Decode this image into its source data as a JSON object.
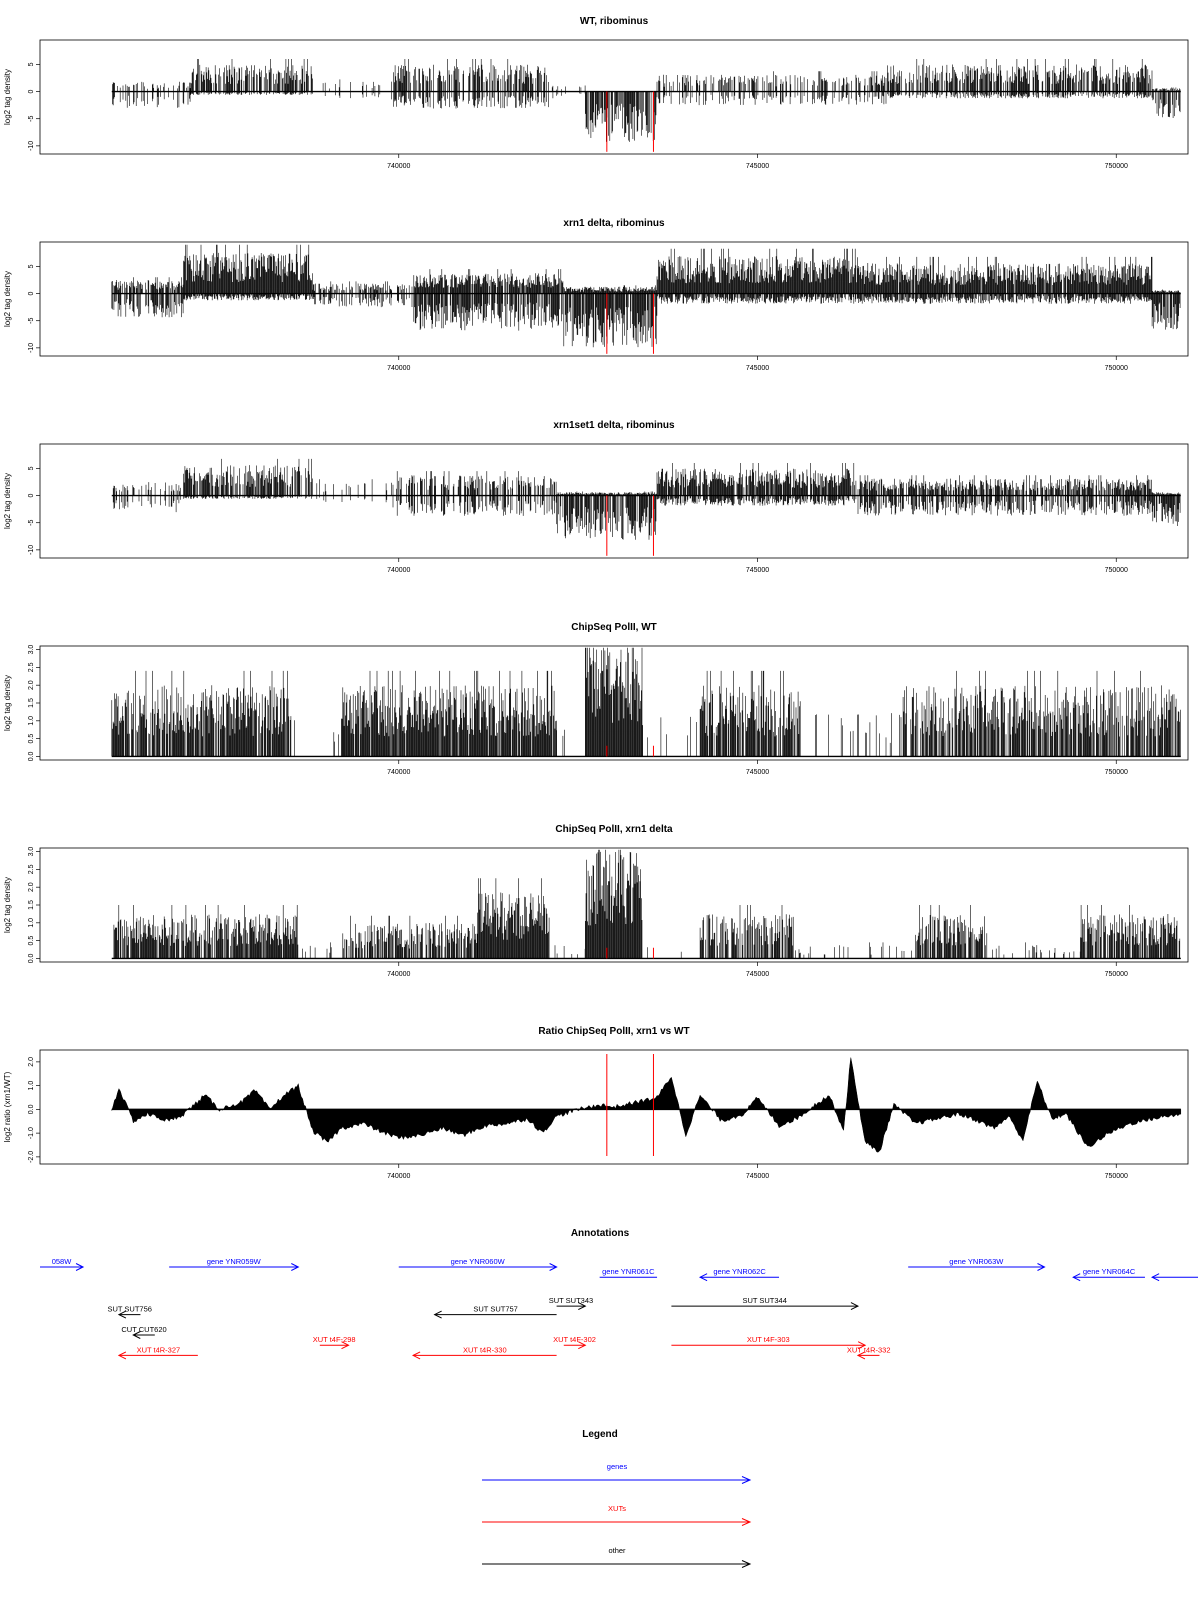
{
  "chart_data": [
    {
      "type": "bar",
      "title": "WT, ribominus",
      "ylabel": "log2 tag density",
      "yticks": [
        5,
        0,
        -5,
        -10
      ],
      "ylim": [
        -11.5,
        9.5
      ],
      "xticks": [
        740000,
        745000,
        750000
      ],
      "xlim": [
        735000,
        751000
      ],
      "markers_x": [
        742900,
        743550
      ],
      "profile": {
        "segments": [
          {
            "from": 736000,
            "to": 737100,
            "pos": 1.5,
            "neg": -2.5,
            "density": 0.35
          },
          {
            "from": 737100,
            "to": 738800,
            "pos": 4.0,
            "neg": -0.5,
            "density": 0.75
          },
          {
            "from": 738800,
            "to": 739900,
            "pos": 1.5,
            "neg": -1.0,
            "density": 0.15
          },
          {
            "from": 739900,
            "to": 742100,
            "pos": 4.0,
            "neg": -2.5,
            "density": 0.65
          },
          {
            "from": 742100,
            "to": 742600,
            "pos": 1.0,
            "neg": -1.0,
            "density": 0.15
          },
          {
            "from": 742600,
            "to": 743600,
            "pos": 0.0,
            "neg": -7.5,
            "density": 1.0
          },
          {
            "from": 743600,
            "to": 746800,
            "pos": 2.5,
            "neg": -2.0,
            "density": 0.45
          },
          {
            "from": 746800,
            "to": 750500,
            "pos": 4.0,
            "neg": -1.0,
            "density": 0.7
          },
          {
            "from": 750500,
            "to": 750900,
            "pos": 0.5,
            "neg": -4.0,
            "density": 0.8
          }
        ]
      }
    },
    {
      "type": "bar",
      "title": "xrn1 delta, ribominus",
      "ylabel": "log2 tag density",
      "yticks": [
        5,
        0,
        -5,
        -10
      ],
      "ylim": [
        -11.5,
        9.5
      ],
      "xticks": [
        740000,
        745000,
        750000
      ],
      "xlim": [
        735000,
        751000
      ],
      "markers_x": [
        742900,
        743550
      ],
      "profile": {
        "segments": [
          {
            "from": 736000,
            "to": 737000,
            "pos": 2.0,
            "neg": -3.5,
            "density": 0.75
          },
          {
            "from": 737000,
            "to": 738800,
            "pos": 6.0,
            "neg": -1.0,
            "density": 1.0
          },
          {
            "from": 738800,
            "to": 740200,
            "pos": 1.5,
            "neg": -2.0,
            "density": 0.6
          },
          {
            "from": 740200,
            "to": 742300,
            "pos": 3.0,
            "neg": -5.5,
            "density": 0.95
          },
          {
            "from": 742300,
            "to": 743600,
            "pos": 1.0,
            "neg": -8.0,
            "density": 1.0
          },
          {
            "from": 743600,
            "to": 746400,
            "pos": 5.5,
            "neg": -1.5,
            "density": 1.0
          },
          {
            "from": 746400,
            "to": 750500,
            "pos": 4.5,
            "neg": -1.5,
            "density": 0.95
          },
          {
            "from": 750500,
            "to": 750900,
            "pos": 0.5,
            "neg": -5.5,
            "density": 1.0
          }
        ]
      }
    },
    {
      "type": "bar",
      "title": "xrn1set1 delta, ribominus",
      "ylabel": "log2 tag density",
      "yticks": [
        5,
        0,
        -5,
        -10
      ],
      "ylim": [
        -11.5,
        9.5
      ],
      "xticks": [
        740000,
        745000,
        750000
      ],
      "xlim": [
        735000,
        751000
      ],
      "markers_x": [
        742900,
        743550
      ],
      "profile": {
        "segments": [
          {
            "from": 736000,
            "to": 737000,
            "pos": 2.0,
            "neg": -2.5,
            "density": 0.4
          },
          {
            "from": 737000,
            "to": 738800,
            "pos": 4.5,
            "neg": -0.5,
            "density": 0.8
          },
          {
            "from": 738800,
            "to": 739900,
            "pos": 2.0,
            "neg": -1.0,
            "density": 0.2
          },
          {
            "from": 739900,
            "to": 742200,
            "pos": 3.0,
            "neg": -3.0,
            "density": 0.55
          },
          {
            "from": 742200,
            "to": 743600,
            "pos": 0.5,
            "neg": -6.5,
            "density": 1.0
          },
          {
            "from": 743600,
            "to": 746400,
            "pos": 4.0,
            "neg": -1.5,
            "density": 0.85
          },
          {
            "from": 746400,
            "to": 750500,
            "pos": 2.5,
            "neg": -3.0,
            "density": 0.75
          },
          {
            "from": 750500,
            "to": 750900,
            "pos": 0.5,
            "neg": -4.5,
            "density": 1.0
          }
        ]
      }
    },
    {
      "type": "bar",
      "title": "ChipSeq PolII, WT",
      "ylabel": "log2 tag density",
      "yticks": [
        0.0,
        0.5,
        1.0,
        1.5,
        2.0,
        2.5,
        3.0
      ],
      "ylim": [
        -0.1,
        3.1
      ],
      "xticks": [
        740000,
        745000,
        750000
      ],
      "xlim": [
        735000,
        751000
      ],
      "markers_x": [
        742900,
        743550
      ],
      "profile": {
        "segments": [
          {
            "from": 736000,
            "to": 738500,
            "pos": 1.6,
            "neg": 0,
            "density": 0.85
          },
          {
            "from": 738500,
            "to": 739200,
            "pos": 1.0,
            "neg": 0,
            "density": 0.1
          },
          {
            "from": 739200,
            "to": 742200,
            "pos": 1.6,
            "neg": 0,
            "density": 0.95
          },
          {
            "from": 742200,
            "to": 742600,
            "pos": 1.0,
            "neg": 0,
            "density": 0.1
          },
          {
            "from": 742600,
            "to": 743400,
            "pos": 2.6,
            "neg": 0,
            "density": 1.0
          },
          {
            "from": 743400,
            "to": 744200,
            "pos": 1.0,
            "neg": 0,
            "density": 0.08
          },
          {
            "from": 744200,
            "to": 745600,
            "pos": 1.6,
            "neg": 0,
            "density": 0.85
          },
          {
            "from": 745600,
            "to": 747000,
            "pos": 1.0,
            "neg": 0,
            "density": 0.08
          },
          {
            "from": 747000,
            "to": 750900,
            "pos": 1.6,
            "neg": 0,
            "density": 0.75
          }
        ]
      }
    },
    {
      "type": "bar",
      "title": "ChipSeq PolII, xrn1 delta",
      "ylabel": "log2 tag density",
      "yticks": [
        0.0,
        0.5,
        1.0,
        1.5,
        2.0,
        2.5,
        3.0
      ],
      "ylim": [
        -0.1,
        3.1
      ],
      "xticks": [
        740000,
        745000,
        750000
      ],
      "xlim": [
        735000,
        751000
      ],
      "markers_x": [
        742900,
        743550
      ],
      "profile": {
        "segments": [
          {
            "from": 736000,
            "to": 738600,
            "pos": 1.0,
            "neg": 0,
            "density": 0.85
          },
          {
            "from": 738600,
            "to": 739200,
            "pos": 0.3,
            "neg": 0,
            "density": 0.1
          },
          {
            "from": 739200,
            "to": 741100,
            "pos": 0.8,
            "neg": 0,
            "density": 0.7
          },
          {
            "from": 741100,
            "to": 742100,
            "pos": 1.5,
            "neg": 0,
            "density": 1.0
          },
          {
            "from": 742100,
            "to": 742600,
            "pos": 0.3,
            "neg": 0,
            "density": 0.05
          },
          {
            "from": 742600,
            "to": 743400,
            "pos": 2.4,
            "neg": 0,
            "density": 1.0
          },
          {
            "from": 743400,
            "to": 744200,
            "pos": 0.3,
            "neg": 0,
            "density": 0.05
          },
          {
            "from": 744200,
            "to": 745500,
            "pos": 1.0,
            "neg": 0,
            "density": 0.75
          },
          {
            "from": 745500,
            "to": 747200,
            "pos": 0.3,
            "neg": 0,
            "density": 0.1
          },
          {
            "from": 747200,
            "to": 748200,
            "pos": 1.0,
            "neg": 0,
            "density": 0.8
          },
          {
            "from": 748200,
            "to": 749500,
            "pos": 0.3,
            "neg": 0,
            "density": 0.15
          },
          {
            "from": 749500,
            "to": 750900,
            "pos": 1.0,
            "neg": 0,
            "density": 0.8
          }
        ]
      }
    },
    {
      "type": "area",
      "title": "Ratio ChipSeq PolII, xrn1 vs WT",
      "ylabel": "log2 ratio (xrn1/WT)",
      "yticks": [
        -2,
        -1,
        0,
        1,
        2
      ],
      "ylim": [
        -2.3,
        2.5
      ],
      "xticks": [
        740000,
        745000,
        750000
      ],
      "xlim": [
        735000,
        751000
      ],
      "markers_x": [
        742900,
        743550
      ],
      "x": [
        736000,
        736100,
        736300,
        736500,
        736800,
        737000,
        737300,
        737500,
        737800,
        738000,
        738200,
        738400,
        738600,
        738800,
        739000,
        739200,
        739500,
        739800,
        740000,
        740300,
        740600,
        740900,
        741200,
        741500,
        741800,
        742000,
        742200,
        742500,
        742800,
        743000,
        743300,
        743600,
        743800,
        744000,
        744200,
        744500,
        744800,
        745000,
        745300,
        745600,
        745800,
        746000,
        746200,
        746300,
        746500,
        746700,
        746900,
        747200,
        747500,
        747800,
        748000,
        748300,
        748500,
        748700,
        748900,
        749100,
        749300,
        749600,
        749900,
        750200,
        750500,
        750900
      ],
      "y": [
        0.0,
        0.9,
        -0.5,
        -0.2,
        -0.5,
        -0.2,
        0.6,
        0.0,
        0.3,
        0.8,
        0.0,
        0.6,
        1.0,
        -0.9,
        -1.4,
        -0.8,
        -0.6,
        -1.0,
        -1.2,
        -1.1,
        -0.8,
        -1.1,
        -0.7,
        -0.6,
        -0.4,
        -1.0,
        -0.3,
        0.0,
        0.2,
        0.1,
        0.3,
        0.5,
        1.4,
        -1.1,
        0.6,
        -0.5,
        -0.2,
        0.5,
        -0.7,
        -0.3,
        0.2,
        0.6,
        -0.9,
        2.2,
        -1.4,
        -1.8,
        0.2,
        -0.6,
        -0.4,
        -0.2,
        -0.4,
        -0.8,
        -0.3,
        -1.3,
        1.2,
        -0.4,
        -0.2,
        -1.6,
        -1.0,
        -0.6,
        -0.4,
        -0.2
      ]
    }
  ],
  "annotations": {
    "title": "Annotations",
    "xlim": [
      735000,
      751000
    ],
    "features": [
      {
        "label": "058W",
        "x1": 735000,
        "x2": 735600,
        "row": 1,
        "color": "#0000ff",
        "dir": "right"
      },
      {
        "label": "gene YNR059W",
        "x1": 736800,
        "x2": 738600,
        "row": 1,
        "color": "#0000ff",
        "dir": "right"
      },
      {
        "label": "gene YNR060W",
        "x1": 740000,
        "x2": 742200,
        "row": 1,
        "color": "#0000ff",
        "dir": "right"
      },
      {
        "label": "gene YNR061C",
        "x1": 742800,
        "x2": 743600,
        "row": 1.6,
        "color": "#0000ff",
        "dir": "none"
      },
      {
        "label": "gene YNR062C",
        "x1": 744200,
        "x2": 745300,
        "row": 1.6,
        "color": "#0000ff",
        "dir": "left"
      },
      {
        "label": "gene YNR063W",
        "x1": 747100,
        "x2": 749000,
        "row": 1,
        "color": "#0000ff",
        "dir": "right"
      },
      {
        "label": "gene YNR064C",
        "x1": 749400,
        "x2": 750400,
        "row": 1.6,
        "color": "#0000ff",
        "dir": "left"
      },
      {
        "label": "",
        "x1": 750500,
        "x2": 751800,
        "row": 1.6,
        "color": "#0000ff",
        "dir": "left"
      },
      {
        "label": "SUT SUT756",
        "x1": 736100,
        "x2": 736400,
        "row": 3.8,
        "color": "#000000",
        "dir": "left"
      },
      {
        "label": "SUT SUT757",
        "x1": 740500,
        "x2": 742200,
        "row": 3.8,
        "color": "#000000",
        "dir": "left"
      },
      {
        "label": "SUT SUT343",
        "x1": 742200,
        "x2": 742600,
        "row": 3.3,
        "color": "#000000",
        "dir": "right"
      },
      {
        "label": "SUT SUT344",
        "x1": 743800,
        "x2": 746400,
        "row": 3.3,
        "color": "#000000",
        "dir": "right"
      },
      {
        "label": "CUT CUT620",
        "x1": 736300,
        "x2": 736600,
        "row": 5.0,
        "color": "#000000",
        "dir": "left"
      },
      {
        "label": "XUT t4F-298",
        "x1": 738900,
        "x2": 739300,
        "row": 5.6,
        "color": "#ff0000",
        "dir": "right"
      },
      {
        "label": "XUT t4F-302",
        "x1": 742300,
        "x2": 742600,
        "row": 5.6,
        "color": "#ff0000",
        "dir": "right"
      },
      {
        "label": "XUT t4F-303",
        "x1": 743800,
        "x2": 746500,
        "row": 5.6,
        "color": "#ff0000",
        "dir": "right"
      },
      {
        "label": "XUT t4R-327",
        "x1": 736100,
        "x2": 737200,
        "row": 6.2,
        "color": "#ff0000",
        "dir": "left"
      },
      {
        "label": "XUT t4R-330",
        "x1": 740200,
        "x2": 742200,
        "row": 6.2,
        "color": "#ff0000",
        "dir": "left"
      },
      {
        "label": "XUT t4R-332",
        "x1": 746400,
        "x2": 746700,
        "row": 6.2,
        "color": "#ff0000",
        "dir": "left"
      }
    ]
  },
  "legend": {
    "title": "Legend",
    "items": [
      {
        "label": "genes",
        "color": "#0000ff"
      },
      {
        "label": "XUTs",
        "color": "#ff0000"
      },
      {
        "label": "other",
        "color": "#000000"
      }
    ]
  }
}
